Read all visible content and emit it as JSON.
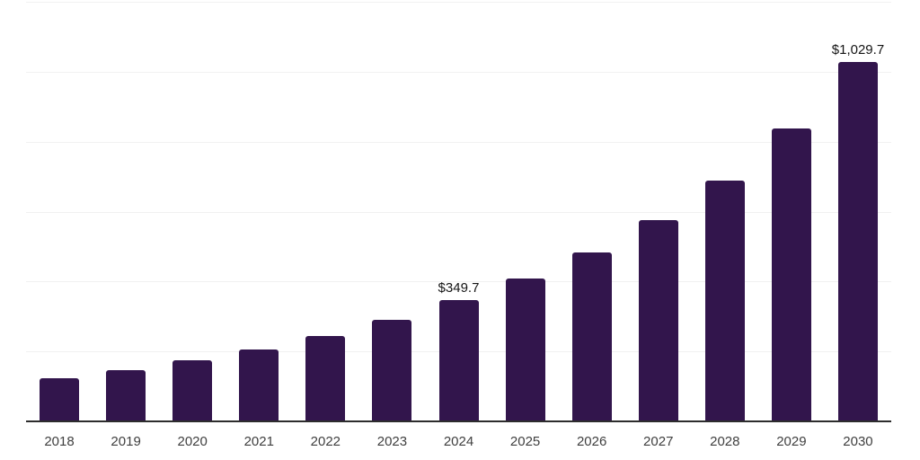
{
  "chart_data": {
    "type": "bar",
    "title": "",
    "xlabel": "",
    "ylabel": "",
    "categories": [
      "2018",
      "2019",
      "2020",
      "2021",
      "2022",
      "2023",
      "2024",
      "2025",
      "2026",
      "2027",
      "2028",
      "2029",
      "2030"
    ],
    "values": [
      126,
      150,
      177,
      207,
      248,
      293,
      349.7,
      412,
      486,
      578,
      690,
      840,
      1029.7
    ],
    "annotations": [
      {
        "category": "2024",
        "text": "$349.7",
        "value": 349.7
      },
      {
        "category": "2030",
        "text": "$1,029.7",
        "value": 1029.7
      }
    ],
    "ylim": [
      0,
      1200
    ],
    "grid_step": 200,
    "grid": true,
    "y_tick_labels_visible": false,
    "legend_position": "none",
    "colors": {
      "bar": "#32154c",
      "axis_line": "#2d2d2d",
      "gridline": "#f1f1f1",
      "value_label": "#141414",
      "tick_label": "#3f3f3f",
      "background": "#ffffff"
    }
  }
}
